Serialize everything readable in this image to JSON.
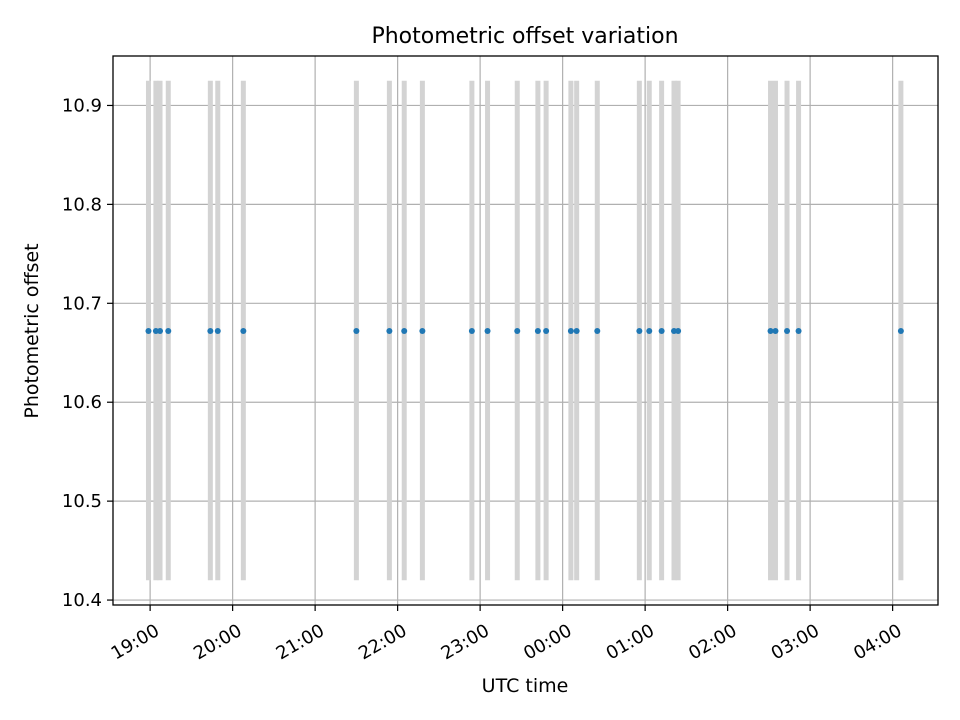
{
  "chart_data": {
    "type": "scatter",
    "title": "Photometric offset variation",
    "xlabel": "UTC time",
    "ylabel": "Photometric offset",
    "x_unit": "hours (UTC, continuing past midnight)",
    "xlim": [
      18.55,
      28.55
    ],
    "ylim": [
      10.395,
      10.95
    ],
    "yticks": [
      10.4,
      10.5,
      10.6,
      10.7,
      10.8,
      10.9
    ],
    "ytick_labels": [
      "10.4",
      "10.5",
      "10.6",
      "10.7",
      "10.8",
      "10.9"
    ],
    "xticks": [
      19,
      20,
      21,
      22,
      23,
      24,
      25,
      26,
      27,
      28
    ],
    "xtick_labels": [
      "19:00",
      "20:00",
      "21:00",
      "22:00",
      "23:00",
      "00:00",
      "01:00",
      "02:00",
      "03:00",
      "04:00"
    ],
    "grid": true,
    "series": [
      {
        "color": "#1f77b4",
        "x": [
          18.98,
          19.07,
          19.12,
          19.22,
          19.73,
          19.82,
          20.13,
          21.5,
          21.9,
          22.08,
          22.3,
          22.9,
          23.09,
          23.45,
          23.7,
          23.8,
          24.1,
          24.17,
          24.42,
          24.93,
          25.05,
          25.2,
          25.35,
          25.4,
          26.52,
          26.58,
          26.72,
          26.86,
          28.1
        ],
        "y": [
          10.672,
          10.672,
          10.672,
          10.672,
          10.672,
          10.672,
          10.672,
          10.672,
          10.672,
          10.672,
          10.672,
          10.672,
          10.672,
          10.672,
          10.672,
          10.672,
          10.672,
          10.672,
          10.672,
          10.672,
          10.672,
          10.672,
          10.672,
          10.672,
          10.672,
          10.672,
          10.672,
          10.672,
          10.672
        ],
        "error_low": 10.42,
        "error_high": 10.925,
        "error_color": "#d3d3d3"
      }
    ]
  }
}
